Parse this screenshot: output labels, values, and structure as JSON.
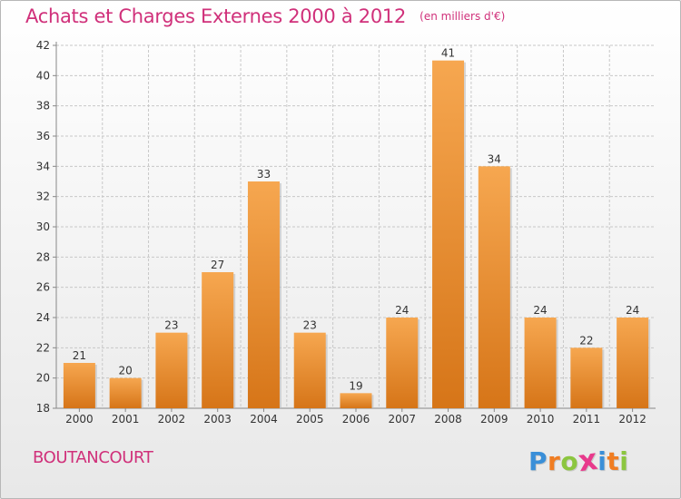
{
  "title": "Achats et Charges Externes 2000 à 2012",
  "subtitle": "(en milliers d'€)",
  "city": "BOUTANCOURT",
  "logo": {
    "text": "Proxiti",
    "colors": [
      "#3a8fd8",
      "#f07d22",
      "#8cc63f",
      "#e83a8c",
      "#3a8fd8",
      "#f07d22",
      "#8cc63f"
    ]
  },
  "colors": {
    "accent": "#d0307a",
    "bar_top": "#f6a750",
    "bar_bottom": "#d67518",
    "grid": "#c8c8c8",
    "axis_text": "#333333"
  },
  "chart_data": {
    "type": "bar",
    "categories": [
      "2000",
      "2001",
      "2002",
      "2003",
      "2004",
      "2005",
      "2006",
      "2007",
      "2008",
      "2009",
      "2010",
      "2011",
      "2012"
    ],
    "values": [
      21,
      20,
      23,
      27,
      33,
      23,
      19,
      24,
      41,
      34,
      24,
      22,
      24
    ],
    "title": "Achats et Charges Externes 2000 à 2012",
    "subtitle": "(en milliers d'€)",
    "xlabel": "",
    "ylabel": "",
    "ylim": [
      18,
      42
    ],
    "yticks": [
      18,
      20,
      22,
      24,
      26,
      28,
      30,
      32,
      34,
      36,
      38,
      40,
      42
    ],
    "grid": true,
    "data_labels": true
  }
}
